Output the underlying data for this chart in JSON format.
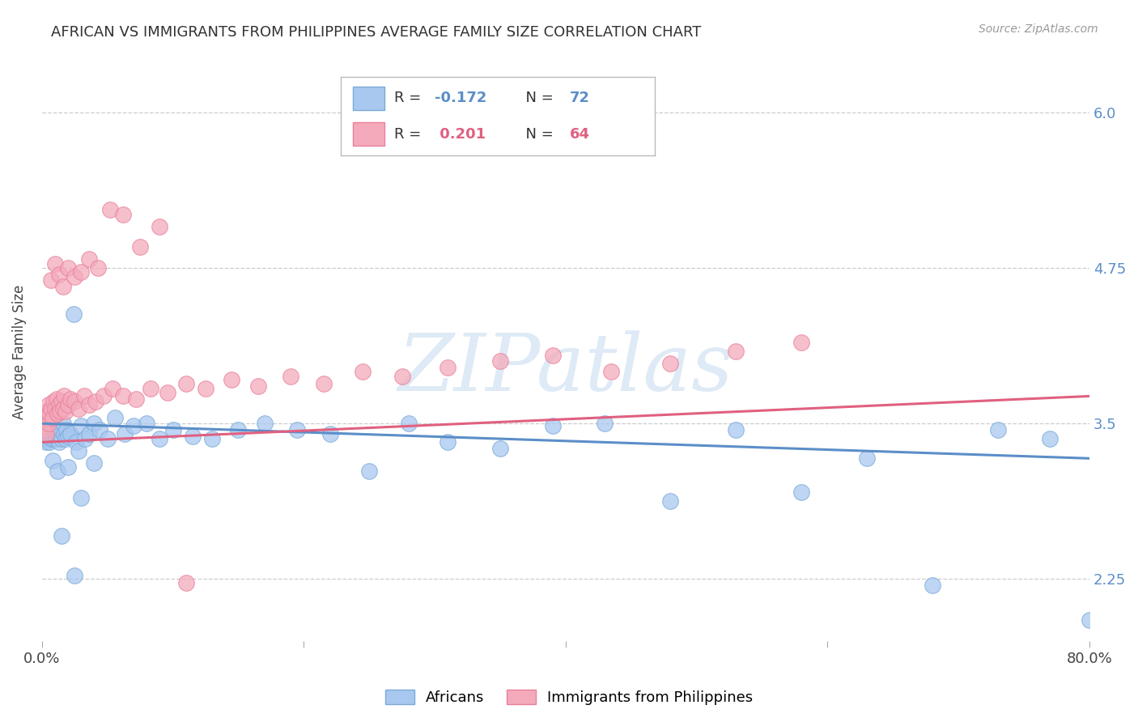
{
  "title": "AFRICAN VS IMMIGRANTS FROM PHILIPPINES AVERAGE FAMILY SIZE CORRELATION CHART",
  "source": "Source: ZipAtlas.com",
  "ylabel": "Average Family Size",
  "yticks": [
    2.25,
    3.5,
    4.75,
    6.0
  ],
  "xlim": [
    0.0,
    0.8
  ],
  "ylim": [
    1.75,
    6.4
  ],
  "background_color": "#ffffff",
  "watermark": "ZIPatlas",
  "blue_fill": "#A8C8F0",
  "pink_fill": "#F4AABB",
  "blue_edge": "#7AAAD8",
  "pink_edge": "#E8809A",
  "blue_line_color": "#5B8EC8",
  "pink_line_color": "#E06080",
  "legend_blue_R": "-0.172",
  "legend_blue_N": "72",
  "legend_pink_R": "0.201",
  "legend_pink_N": "64",
  "africans_label": "Africans",
  "philippines_label": "Immigrants from Philippines",
  "blue_scatter_x": [
    0.001,
    0.002,
    0.002,
    0.003,
    0.003,
    0.004,
    0.004,
    0.005,
    0.005,
    0.006,
    0.006,
    0.007,
    0.007,
    0.008,
    0.008,
    0.009,
    0.009,
    0.01,
    0.01,
    0.011,
    0.012,
    0.013,
    0.014,
    0.015,
    0.016,
    0.017,
    0.018,
    0.019,
    0.02,
    0.022,
    0.024,
    0.026,
    0.028,
    0.03,
    0.033,
    0.036,
    0.04,
    0.044,
    0.05,
    0.056,
    0.063,
    0.07,
    0.08,
    0.09,
    0.1,
    0.115,
    0.13,
    0.15,
    0.17,
    0.195,
    0.22,
    0.25,
    0.28,
    0.31,
    0.35,
    0.39,
    0.43,
    0.48,
    0.53,
    0.58,
    0.63,
    0.68,
    0.73,
    0.77,
    0.8,
    0.008,
    0.012,
    0.015,
    0.02,
    0.025,
    0.03,
    0.04
  ],
  "blue_scatter_y": [
    3.45,
    3.42,
    3.38,
    3.5,
    3.35,
    3.45,
    3.4,
    3.48,
    3.42,
    3.5,
    3.35,
    3.42,
    3.38,
    3.5,
    3.45,
    3.42,
    3.38,
    3.45,
    3.4,
    3.38,
    3.42,
    3.35,
    3.45,
    3.38,
    3.5,
    3.42,
    3.38,
    3.45,
    3.4,
    3.42,
    4.38,
    3.35,
    3.28,
    3.48,
    3.38,
    3.42,
    3.5,
    3.45,
    3.38,
    3.55,
    3.42,
    3.48,
    3.5,
    3.38,
    3.45,
    3.4,
    3.38,
    3.45,
    3.5,
    3.45,
    3.42,
    3.12,
    3.5,
    3.35,
    3.3,
    3.48,
    3.5,
    2.88,
    3.45,
    2.95,
    3.22,
    2.2,
    3.45,
    3.38,
    1.92,
    3.2,
    3.12,
    2.6,
    3.15,
    2.28,
    2.9,
    3.18
  ],
  "pink_scatter_x": [
    0.001,
    0.002,
    0.002,
    0.003,
    0.003,
    0.004,
    0.004,
    0.005,
    0.005,
    0.006,
    0.007,
    0.008,
    0.009,
    0.01,
    0.011,
    0.012,
    0.013,
    0.014,
    0.015,
    0.016,
    0.017,
    0.018,
    0.02,
    0.022,
    0.025,
    0.028,
    0.032,
    0.036,
    0.041,
    0.047,
    0.054,
    0.062,
    0.072,
    0.083,
    0.096,
    0.11,
    0.125,
    0.145,
    0.165,
    0.19,
    0.215,
    0.245,
    0.275,
    0.31,
    0.35,
    0.39,
    0.435,
    0.48,
    0.53,
    0.58,
    0.007,
    0.01,
    0.013,
    0.016,
    0.02,
    0.025,
    0.03,
    0.036,
    0.043,
    0.052,
    0.062,
    0.075,
    0.09,
    0.11
  ],
  "pink_scatter_y": [
    3.48,
    3.52,
    3.45,
    3.58,
    3.42,
    3.55,
    3.6,
    3.65,
    3.5,
    3.58,
    3.62,
    3.55,
    3.68,
    3.62,
    3.7,
    3.58,
    3.65,
    3.6,
    3.68,
    3.62,
    3.72,
    3.6,
    3.65,
    3.7,
    3.68,
    3.62,
    3.72,
    3.65,
    3.68,
    3.72,
    3.78,
    3.72,
    3.7,
    3.78,
    3.75,
    3.82,
    3.78,
    3.85,
    3.8,
    3.88,
    3.82,
    3.92,
    3.88,
    3.95,
    4.0,
    4.05,
    3.92,
    3.98,
    4.08,
    4.15,
    4.65,
    4.78,
    4.7,
    4.6,
    4.75,
    4.68,
    4.72,
    4.82,
    4.75,
    5.22,
    5.18,
    4.92,
    5.08,
    2.22
  ],
  "blue_trend_x": [
    0.0,
    0.8
  ],
  "blue_trend_y": [
    3.5,
    3.22
  ],
  "pink_trend_x": [
    0.0,
    0.8
  ],
  "pink_trend_y": [
    3.35,
    3.72
  ]
}
